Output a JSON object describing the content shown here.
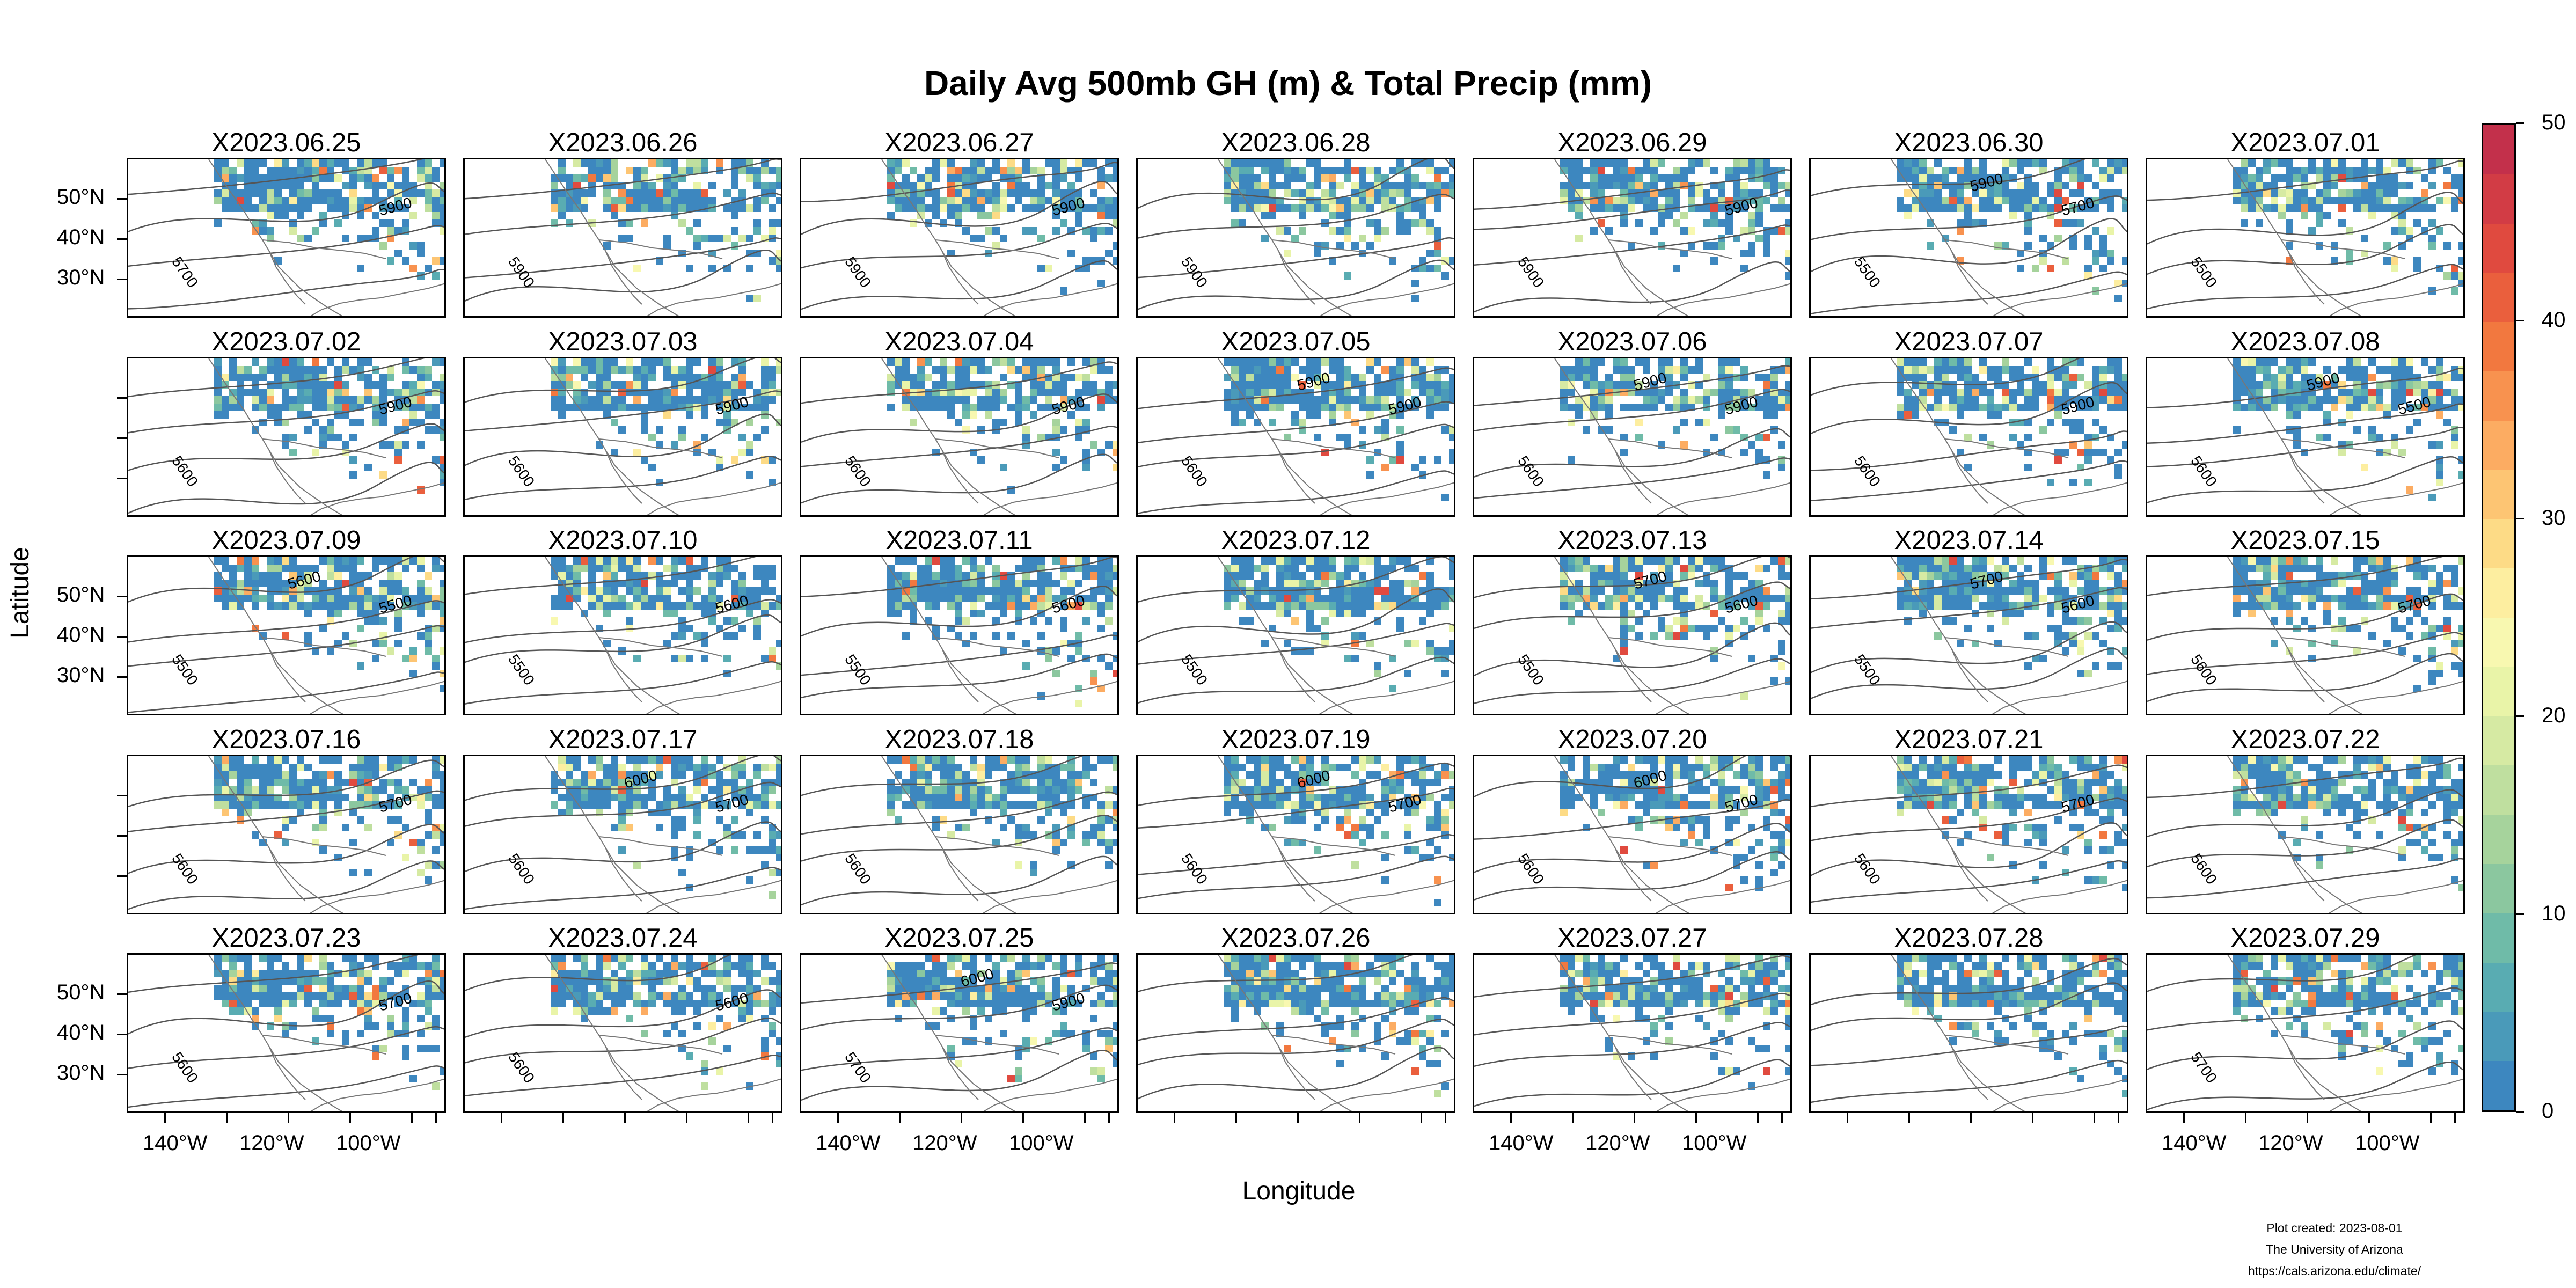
{
  "title": "Daily Avg 500mb GH (m) & Total Precip (mm)",
  "xlabel": "Longitude",
  "ylabel": "Latitude",
  "lon_ticks": [
    "140°W",
    "120°W",
    "100°W"
  ],
  "lat_ticks": [
    "50°N",
    "40°N",
    "30°N"
  ],
  "colorbar": {
    "min": 0,
    "max": 50,
    "tick_labels": [
      "0",
      "10",
      "20",
      "30",
      "40",
      "50"
    ],
    "colors": [
      "#3d87bf",
      "#4a9ab9",
      "#59acb2",
      "#6fbba8",
      "#8bc79f",
      "#a6d39c",
      "#bfdf9f",
      "#d6eaa3",
      "#e9f4a8",
      "#f8f8b0",
      "#fdeea0",
      "#fddb86",
      "#fdc573",
      "#fcac62",
      "#f8924f",
      "#f2783f",
      "#ea5f3d",
      "#e04a3f",
      "#d23c45",
      "#c3304b"
    ]
  },
  "panels": [
    {
      "date": "X2023.06.25",
      "contours": [
        "5700",
        "5900"
      ]
    },
    {
      "date": "X2023.06.26",
      "contours": [
        "5900"
      ]
    },
    {
      "date": "X2023.06.27",
      "contours": [
        "5900",
        "5900"
      ]
    },
    {
      "date": "X2023.06.28",
      "contours": [
        "5900"
      ]
    },
    {
      "date": "X2023.06.29",
      "contours": [
        "5900",
        "5900"
      ]
    },
    {
      "date": "X2023.06.30",
      "contours": [
        "5500",
        "5700",
        "5900"
      ]
    },
    {
      "date": "X2023.07.01",
      "contours": [
        "5500"
      ]
    },
    {
      "date": "X2023.07.02",
      "contours": [
        "5600",
        "5900"
      ]
    },
    {
      "date": "X2023.07.03",
      "contours": [
        "5600",
        "5900"
      ]
    },
    {
      "date": "X2023.07.04",
      "contours": [
        "5600",
        "5900"
      ]
    },
    {
      "date": "X2023.07.05",
      "contours": [
        "5600",
        "5900",
        "5900"
      ]
    },
    {
      "date": "X2023.07.06",
      "contours": [
        "5600",
        "5900",
        "5900"
      ]
    },
    {
      "date": "X2023.07.07",
      "contours": [
        "5600",
        "5900"
      ]
    },
    {
      "date": "X2023.07.08",
      "contours": [
        "5600",
        "5500",
        "5900"
      ]
    },
    {
      "date": "X2023.07.09",
      "contours": [
        "5500",
        "5500",
        "5600"
      ]
    },
    {
      "date": "X2023.07.10",
      "contours": [
        "5500",
        "5600"
      ]
    },
    {
      "date": "X2023.07.11",
      "contours": [
        "5500",
        "5600"
      ]
    },
    {
      "date": "X2023.07.12",
      "contours": [
        "5500"
      ]
    },
    {
      "date": "X2023.07.13",
      "contours": [
        "5500",
        "5600",
        "5700"
      ]
    },
    {
      "date": "X2023.07.14",
      "contours": [
        "5500",
        "5600",
        "5700"
      ]
    },
    {
      "date": "X2023.07.15",
      "contours": [
        "5600",
        "5700"
      ]
    },
    {
      "date": "X2023.07.16",
      "contours": [
        "5600",
        "5700"
      ]
    },
    {
      "date": "X2023.07.17",
      "contours": [
        "5600",
        "5700",
        "6000"
      ]
    },
    {
      "date": "X2023.07.18",
      "contours": [
        "5600"
      ]
    },
    {
      "date": "X2023.07.19",
      "contours": [
        "5600",
        "5700",
        "6000"
      ]
    },
    {
      "date": "X2023.07.20",
      "contours": [
        "5600",
        "5700",
        "6000"
      ]
    },
    {
      "date": "X2023.07.21",
      "contours": [
        "5600",
        "5700"
      ]
    },
    {
      "date": "X2023.07.22",
      "contours": [
        "5600"
      ]
    },
    {
      "date": "X2023.07.23",
      "contours": [
        "5600",
        "5700"
      ]
    },
    {
      "date": "X2023.07.24",
      "contours": [
        "5600",
        "5600"
      ]
    },
    {
      "date": "X2023.07.25",
      "contours": [
        "5700",
        "5900",
        "6000"
      ]
    },
    {
      "date": "X2023.07.26",
      "contours": []
    },
    {
      "date": "X2023.07.27",
      "contours": []
    },
    {
      "date": "X2023.07.28",
      "contours": []
    },
    {
      "date": "X2023.07.29",
      "contours": [
        "5700"
      ]
    }
  ],
  "credit": {
    "line1": "Plot created: 2023-08-01",
    "line2": "The University of Arizona",
    "line3": "https://cals.arizona.edu/climate/"
  }
}
